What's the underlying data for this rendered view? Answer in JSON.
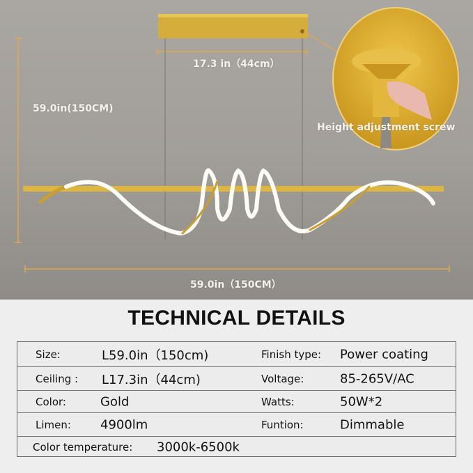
{
  "photo": {
    "dim_mount_width": "17.3 in（44cm）",
    "dim_height": "59.0in(150CM)",
    "dim_length": "59.0in（150CM）",
    "callout": "Height adjustment screw",
    "colors": {
      "gold": "#d9b43c",
      "led": "#ffffff",
      "dimension_line": "#e0a84a"
    }
  },
  "title": "TECHNICAL DETAILS",
  "specs": {
    "rows": [
      {
        "label": "Size:",
        "value": "L59.0in（150cm)",
        "label2": "Finish type:",
        "value2": "Power coating"
      },
      {
        "label": "Ceiling :",
        "value": "L17.3in（44cm)",
        "label2": "Voltage:",
        "value2": "85-265V/AC"
      },
      {
        "label": "Color:",
        "value": "Gold",
        "label2": "Watts:",
        "value2": "50W*2"
      },
      {
        "label": "Limen:",
        "value": "4900lm",
        "label2": "Funtion:",
        "value2": "Dimmable"
      }
    ],
    "last": {
      "label": "Color temperature:",
      "value": "3000k-6500k"
    }
  }
}
